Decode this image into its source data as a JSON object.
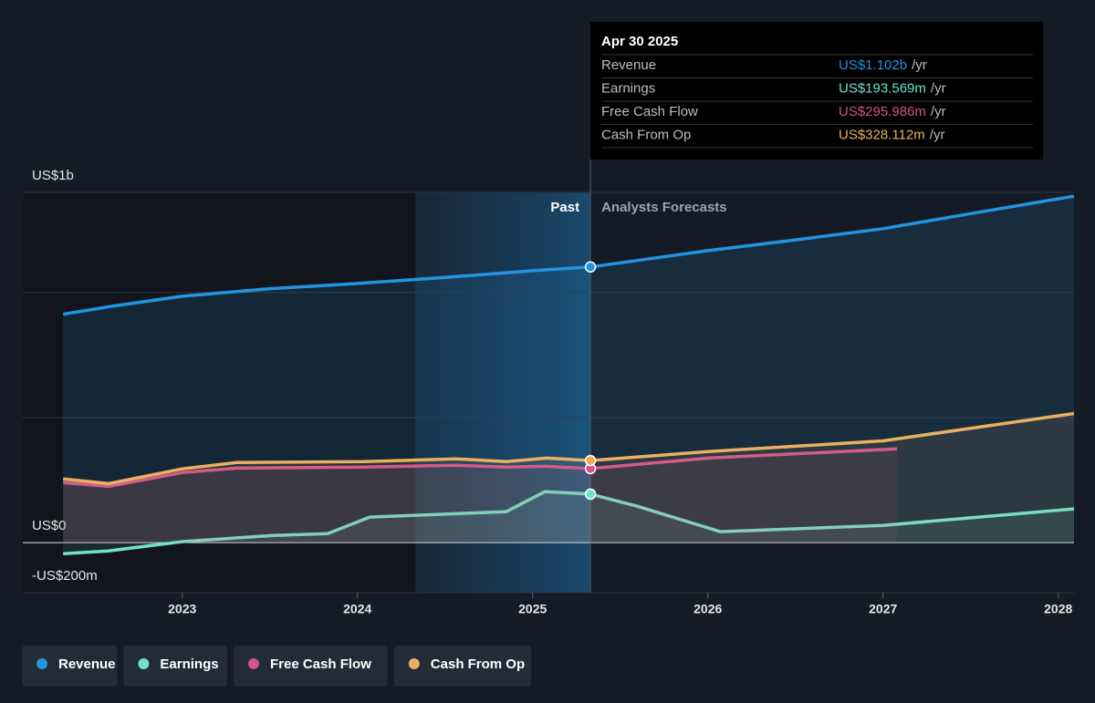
{
  "chart_data": {
    "type": "line",
    "xlim": [
      2022.09,
      2028.09
    ],
    "xticks": [
      2023,
      2024,
      2025,
      2026,
      2027,
      2028
    ],
    "ylim": [
      -200,
      1400
    ],
    "yticks": [
      {
        "value": -200,
        "label": "-US$200m"
      },
      {
        "value": 0,
        "label": "US$0"
      },
      {
        "value": 1000,
        "label": "US$1b"
      }
    ],
    "ygrid": [
      500,
      1400
    ],
    "past_label": "Past",
    "forecast_label": "Analysts Forecasts",
    "forecast_start": 2025.33,
    "highlight_start": 2024.33,
    "series": [
      {
        "name": "Revenue",
        "color": "#2394df",
        "x": [
          2022.32,
          2022.6,
          2023,
          2023.5,
          2024,
          2024.5,
          2025,
          2025.33,
          2026,
          2026.5,
          2027,
          2027.5,
          2028.09
        ],
        "values": [
          913,
          945,
          985,
          1015,
          1036,
          1060,
          1087,
          1102,
          1167,
          1210,
          1255,
          1315,
          1385
        ]
      },
      {
        "name": "Earnings",
        "color": "#6fe3c9",
        "x": [
          2022.32,
          2022.58,
          2023,
          2023.52,
          2023.83,
          2024.07,
          2024.85,
          2025.07,
          2025.33,
          2025.6,
          2026.07,
          2027,
          2028.09
        ],
        "values": [
          -44,
          -33,
          4,
          29,
          36,
          102,
          124,
          204,
          194,
          145,
          44,
          69,
          135
        ]
      },
      {
        "name": "Free Cash Flow",
        "color": "#d1538b",
        "x": [
          2022.32,
          2022.58,
          2023,
          2023.31,
          2024.04,
          2024.56,
          2024.85,
          2025.08,
          2025.33,
          2026,
          2027.08
        ],
        "values": [
          240,
          225,
          280,
          298,
          302,
          309,
          302,
          305,
          296,
          338,
          375
        ]
      },
      {
        "name": "Cash From Op",
        "color": "#e8b060",
        "x": [
          2022.32,
          2022.58,
          2023,
          2023.31,
          2024.04,
          2024.56,
          2024.85,
          2025.08,
          2025.33,
          2026,
          2027,
          2028.09
        ],
        "values": [
          255,
          236,
          295,
          320,
          324,
          335,
          324,
          338,
          328,
          364,
          407,
          516
        ]
      }
    ],
    "tooltip": {
      "title": "Apr 30 2025",
      "unit": "/yr",
      "rows": [
        {
          "label": "Revenue",
          "value": "US$1.102b"
        },
        {
          "label": "Earnings",
          "value": "US$193.569m"
        },
        {
          "label": "Free Cash Flow",
          "value": "US$295.986m"
        },
        {
          "label": "Cash From Op",
          "value": "US$328.112m"
        }
      ]
    }
  }
}
